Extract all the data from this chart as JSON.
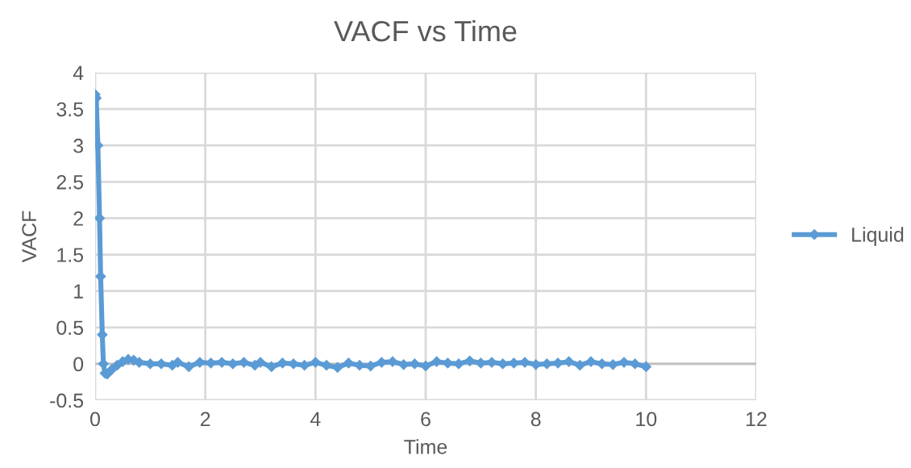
{
  "chart_data": {
    "type": "line",
    "title": "VACF vs Time",
    "xlabel": "Time",
    "ylabel": "VACF",
    "xlim": [
      0,
      12
    ],
    "xticks": [
      0,
      2,
      4,
      6,
      8,
      10,
      12
    ],
    "ylim": [
      -0.5,
      4
    ],
    "yticks": [
      -0.5,
      0,
      0.5,
      1,
      1.5,
      2,
      2.5,
      3,
      3.5,
      4
    ],
    "grid": true,
    "legend": "right",
    "marker": "diamond",
    "line_style": "solid",
    "series": [
      {
        "name": "Liquid",
        "color": "#5b9bd5",
        "x": [
          0,
          0.02,
          0.05,
          0.08,
          0.1,
          0.13,
          0.15,
          0.18,
          0.22,
          0.3,
          0.4,
          0.5,
          0.6,
          0.7,
          0.8,
          1.0,
          1.2,
          1.4,
          1.5,
          1.7,
          1.9,
          2.1,
          2.3,
          2.5,
          2.7,
          2.9,
          3.0,
          3.2,
          3.4,
          3.6,
          3.8,
          4.0,
          4.2,
          4.4,
          4.6,
          4.8,
          5.0,
          5.2,
          5.4,
          5.6,
          5.8,
          6.0,
          6.2,
          6.4,
          6.6,
          6.8,
          7.0,
          7.2,
          7.4,
          7.6,
          7.8,
          8.0,
          8.2,
          8.4,
          8.6,
          8.8,
          9.0,
          9.2,
          9.4,
          9.6,
          9.8,
          10.0
        ],
        "values": [
          3.7,
          3.65,
          3.0,
          2.0,
          1.2,
          0.4,
          0.0,
          -0.13,
          -0.14,
          -0.08,
          -0.02,
          0.03,
          0.06,
          0.05,
          0.02,
          0.0,
          0.0,
          -0.02,
          0.02,
          -0.04,
          0.02,
          0.01,
          0.02,
          0.0,
          0.02,
          -0.02,
          0.02,
          -0.04,
          0.01,
          0.0,
          -0.02,
          0.02,
          -0.02,
          -0.05,
          0.01,
          -0.02,
          -0.03,
          0.02,
          0.03,
          -0.01,
          0.0,
          -0.03,
          0.03,
          0.01,
          0.0,
          0.04,
          0.01,
          0.02,
          0.0,
          0.01,
          0.02,
          -0.01,
          0.0,
          0.01,
          0.03,
          -0.02,
          0.03,
          0.0,
          -0.01,
          0.02,
          0.0,
          -0.04
        ]
      }
    ]
  }
}
